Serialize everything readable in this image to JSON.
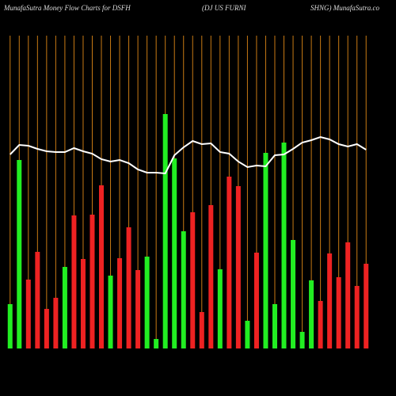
{
  "chart_data": {
    "type": "bar",
    "title_parts": [
      "MunafaSutra  Money Flow  Charts for DSFH",
      "(DJ US FURNI",
      "SHNG) MunafaSutra.co"
    ],
    "categories": [
      null,
      null,
      null,
      null,
      null,
      null,
      null,
      null,
      null,
      null,
      null,
      null,
      null,
      null,
      null,
      null,
      null,
      null,
      null,
      null,
      null,
      null,
      null,
      null,
      null,
      null,
      null,
      null,
      null,
      null,
      null,
      null,
      null,
      null,
      null,
      null,
      null,
      null,
      null,
      null
    ],
    "series": [
      {
        "type": "bar",
        "values": [
          56,
          238,
          87,
          122,
          50,
          64,
          103,
          168,
          113,
          169,
          206,
          92,
          114,
          153,
          99,
          116,
          12,
          296,
          240,
          148,
          172,
          46,
          181,
          100,
          217,
          205,
          35,
          121,
          247,
          56,
          260,
          137,
          21,
          86,
          60,
          120,
          90,
          134,
          79,
          107
        ],
        "colors": [
          "#22ee22",
          "#22ee22",
          "#ee2222",
          "#ee2222",
          "#ee2222",
          "#ee2222",
          "#22ee22",
          "#ee2222",
          "#ee2222",
          "#ee2222",
          "#ee2222",
          "#22ee22",
          "#ee2222",
          "#ee2222",
          "#ee2222",
          "#22ee22",
          "#22ee22",
          "#22ee22",
          "#22ee22",
          "#22ee22",
          "#ee2222",
          "#ee2222",
          "#ee2222",
          "#22ee22",
          "#ee2222",
          "#ee2222",
          "#22ee22",
          "#ee2222",
          "#22ee22",
          "#22ee22",
          "#22ee22",
          "#22ee22",
          "#22ee22",
          "#22ee22",
          "#ee2222",
          "#ee2222",
          "#ee2222",
          "#ee2222",
          "#ee2222",
          "#ee2222"
        ]
      },
      {
        "type": "line",
        "color": "#ffffff",
        "values": [
          245,
          257,
          256,
          252,
          249,
          248,
          248,
          253,
          249,
          246,
          239,
          236,
          238,
          234,
          226,
          222,
          222,
          221,
          244,
          254,
          262,
          258,
          259,
          248,
          246,
          236,
          229,
          231,
          230,
          244,
          245,
          252,
          260,
          263,
          267,
          264,
          258,
          255,
          258,
          251
        ]
      }
    ],
    "ylim": [
      0,
      320
    ],
    "grid_color": "#c87a14"
  }
}
